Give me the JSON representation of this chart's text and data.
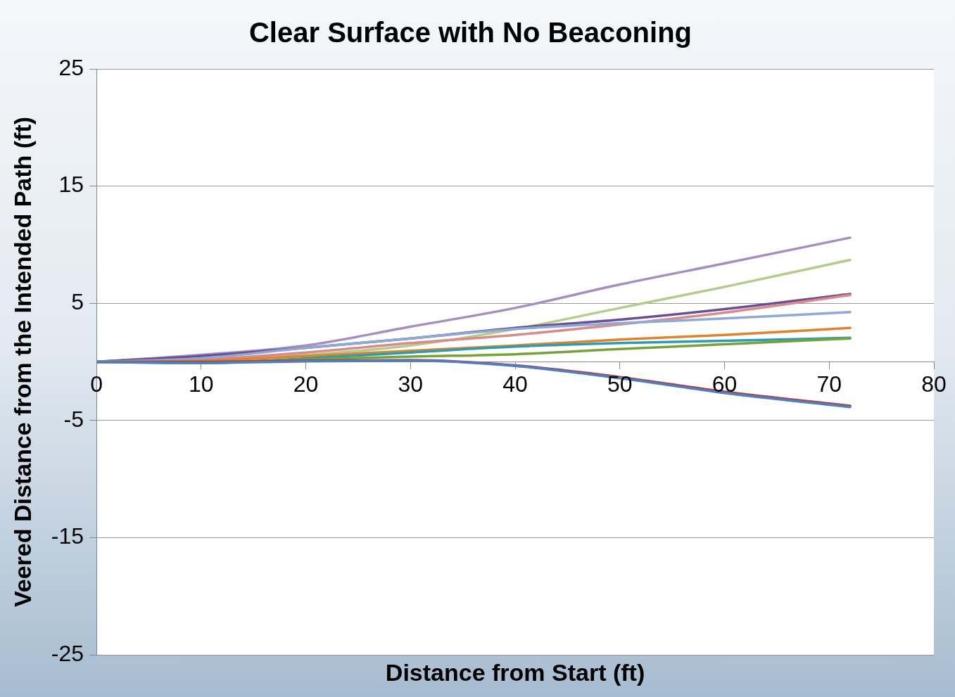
{
  "chart_data": {
    "type": "line",
    "title": "Clear Surface with No Beaconing",
    "xlabel": "Distance from Start (ft)",
    "ylabel": "Veered Distance from the Intended Path (ft)",
    "xlim": [
      0,
      80
    ],
    "xticks": [
      0,
      10,
      20,
      30,
      40,
      50,
      60,
      70,
      80
    ],
    "ylim": [
      -25,
      25
    ],
    "yticks": [
      -25,
      -15,
      -5,
      5,
      15,
      25
    ],
    "grid": "y",
    "legend": false,
    "marker": "none",
    "x": [
      0,
      10,
      20,
      30,
      40,
      50,
      60,
      72
    ],
    "series": [
      {
        "color": "#4f7fc0",
        "values": [
          0,
          -0.1,
          0.05,
          0.1,
          -0.35,
          -1.4,
          -2.65,
          -3.85
        ]
      },
      {
        "color": "#b0413e",
        "values": [
          0,
          0,
          0.1,
          0.15,
          -0.3,
          -1.3,
          -2.55,
          -3.75
        ]
      },
      {
        "color": "#77a23a",
        "values": [
          0,
          0,
          0.2,
          0.45,
          0.65,
          1.1,
          1.5,
          2.0
        ]
      },
      {
        "color": "#2e9cb0",
        "values": [
          0,
          -0.1,
          0.3,
          0.8,
          1.3,
          1.6,
          1.8,
          2.05
        ]
      },
      {
        "color": "#e0832f",
        "values": [
          0,
          0.1,
          0.5,
          0.95,
          1.4,
          1.9,
          2.3,
          2.9
        ]
      },
      {
        "color": "#8ea9d6",
        "values": [
          0,
          0.3,
          1.2,
          2.0,
          2.8,
          3.3,
          3.7,
          4.25
        ]
      },
      {
        "color": "#d98b8b",
        "values": [
          0,
          0.2,
          0.8,
          1.6,
          2.3,
          3.2,
          4.2,
          5.7
        ]
      },
      {
        "color": "#6b4f94",
        "values": [
          0,
          0.5,
          1.2,
          2.0,
          2.9,
          3.6,
          4.5,
          5.8
        ]
      },
      {
        "color": "#b3cc8c",
        "values": [
          0,
          0.2,
          0.6,
          1.4,
          2.8,
          4.6,
          6.4,
          8.7
        ]
      },
      {
        "color": "#a48fbf",
        "values": [
          0,
          0.6,
          1.4,
          3.0,
          4.6,
          6.6,
          8.4,
          10.6
        ]
      }
    ]
  }
}
